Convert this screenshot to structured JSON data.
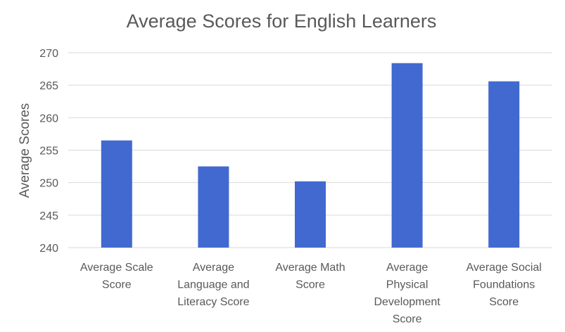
{
  "chart_data": {
    "type": "bar",
    "title": "Average Scores for English Learners",
    "ylabel": "Average Scores",
    "xlabel": "",
    "ylim": [
      240,
      270
    ],
    "yticks": [
      240,
      245,
      250,
      255,
      260,
      265,
      270
    ],
    "grid": true,
    "categories": [
      [
        "Average Scale",
        "Score"
      ],
      [
        "Average",
        "Language and",
        "Literacy Score"
      ],
      [
        "Average Math",
        "Score"
      ],
      [
        "Average",
        "Physical",
        "Development",
        "Score"
      ],
      [
        "Average Social",
        "Foundations",
        "Score"
      ]
    ],
    "values": [
      256.5,
      252.5,
      250.2,
      268.4,
      265.6
    ],
    "colors": {
      "bar": "#4169CF",
      "grid": "#d9d9d9",
      "text": "#595959"
    }
  }
}
